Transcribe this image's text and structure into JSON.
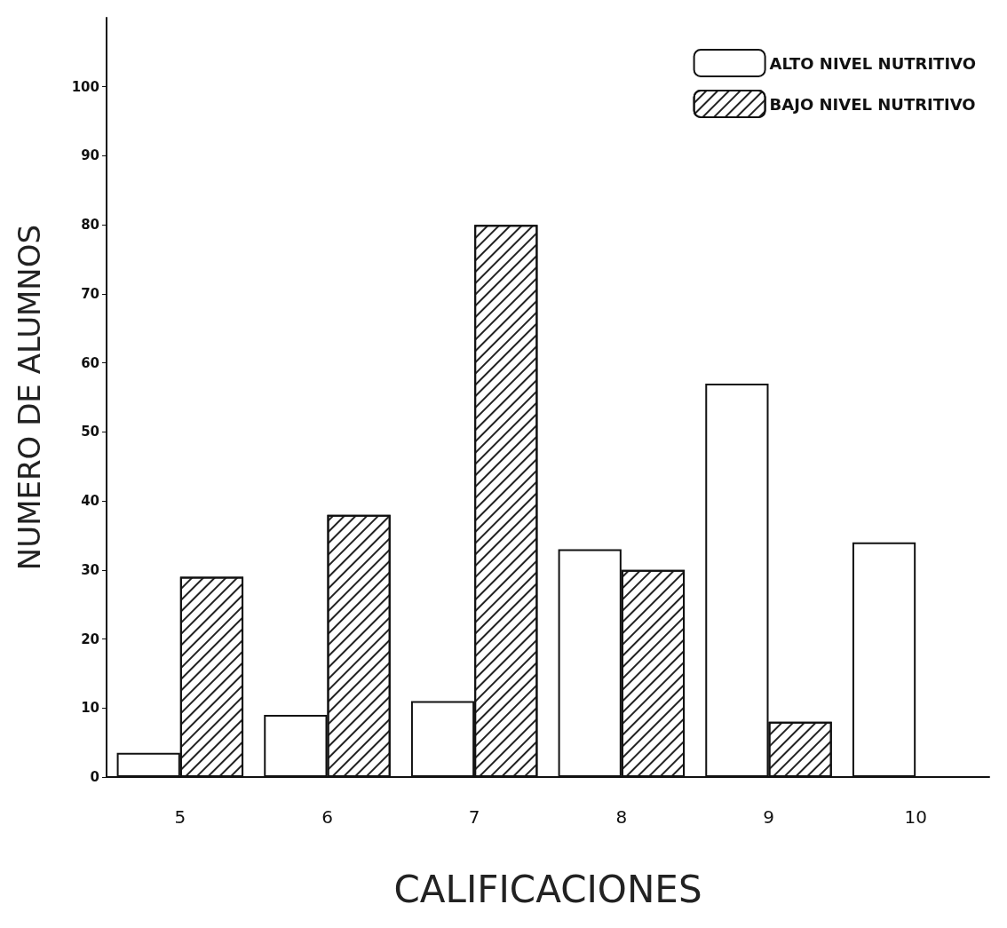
{
  "chart_data": {
    "type": "bar",
    "xlabel": "CALIFICACIONES",
    "ylabel": "NUMERO DE ALUMNOS",
    "categories": [
      "5",
      "6",
      "7",
      "8",
      "9",
      "10"
    ],
    "series": [
      {
        "name": "ALTO NIVEL NUTRITIVO",
        "color": "#ffffff",
        "values": [
          3.5,
          9,
          11,
          33,
          57,
          34
        ]
      },
      {
        "name": "BAJO NIVEL NUTRITIVO",
        "color": "#ffffff",
        "values": [
          29,
          38,
          80,
          30,
          8,
          null
        ]
      }
    ],
    "ylim": [
      0,
      110
    ],
    "yticks": [
      0,
      10,
      20,
      30,
      40,
      50,
      60,
      70,
      80,
      90,
      100
    ],
    "grid": false,
    "legend": "top right"
  }
}
